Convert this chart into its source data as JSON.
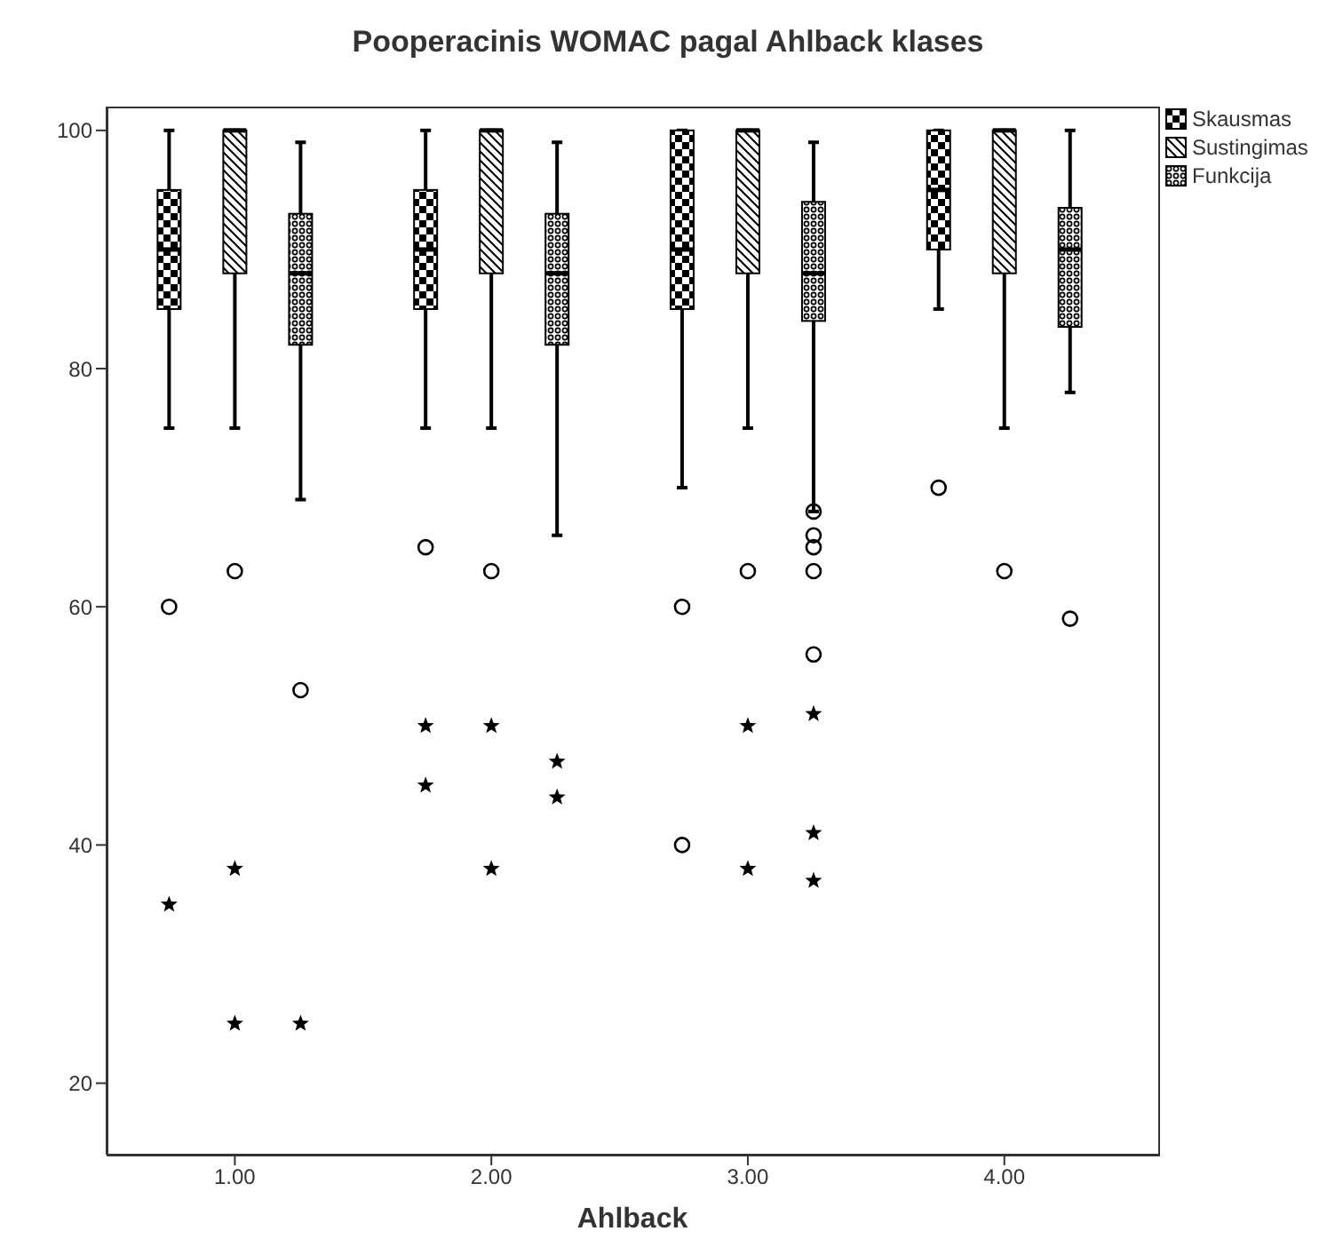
{
  "chart_data": {
    "type": "box",
    "title": "Pooperacinis WOMAC pagal Ahlback klases",
    "xlabel": "Ahlback",
    "categories": [
      "1.00",
      "2.00",
      "3.00",
      "4.00"
    ],
    "ylim": [
      14,
      102
    ],
    "yticks": [
      20,
      40,
      60,
      80,
      100
    ],
    "grid": false,
    "legend": "top right",
    "series": [
      {
        "name": "Skausmas",
        "color": "#000000",
        "boxes": [
          {
            "low": 75,
            "q1": 85,
            "median": 90,
            "q3": 95,
            "high": 100,
            "outliers": [
              60,
              35
            ]
          },
          {
            "low": 75,
            "q1": 85,
            "median": 90,
            "q3": 95,
            "high": 100,
            "outliers": [
              65,
              50,
              45
            ]
          },
          {
            "low": 70,
            "q1": 85,
            "median": 90,
            "q3": 100,
            "high": 100,
            "outliers": [
              60,
              40
            ]
          },
          {
            "low": 85,
            "q1": 90,
            "median": 95,
            "q3": 100,
            "high": 100,
            "outliers": [
              70
            ]
          }
        ]
      },
      {
        "name": "Sustingimas",
        "color": "#000000",
        "boxes": [
          {
            "low": 75,
            "q1": 88,
            "median": 100,
            "q3": 100,
            "high": 100,
            "outliers": [
              63,
              38,
              25
            ]
          },
          {
            "low": 75,
            "q1": 88,
            "median": 100,
            "q3": 100,
            "high": 100,
            "outliers": [
              63,
              50,
              38
            ]
          },
          {
            "low": 75,
            "q1": 88,
            "median": 100,
            "q3": 100,
            "high": 100,
            "outliers": [
              63,
              50,
              38
            ]
          },
          {
            "low": 75,
            "q1": 88,
            "median": 100,
            "q3": 100,
            "high": 100,
            "outliers": [
              63
            ]
          }
        ]
      },
      {
        "name": "Funkcija",
        "color": "#000000",
        "boxes": [
          {
            "low": 69,
            "q1": 82,
            "median": 88,
            "q3": 93,
            "high": 99,
            "outliers": [
              53,
              25
            ]
          },
          {
            "low": 66,
            "q1": 82,
            "median": 88,
            "q3": 93,
            "high": 99,
            "outliers": [
              47,
              44
            ]
          },
          {
            "low": 68,
            "q1": 84,
            "median": 88,
            "q3": 94,
            "high": 99,
            "outliers": [
              68,
              66,
              65,
              63,
              56,
              51,
              41,
              37
            ]
          },
          {
            "low": 78,
            "q1": 83.5,
            "median": 90,
            "q3": 93.5,
            "high": 100,
            "outliers": [
              59
            ]
          }
        ]
      }
    ]
  }
}
